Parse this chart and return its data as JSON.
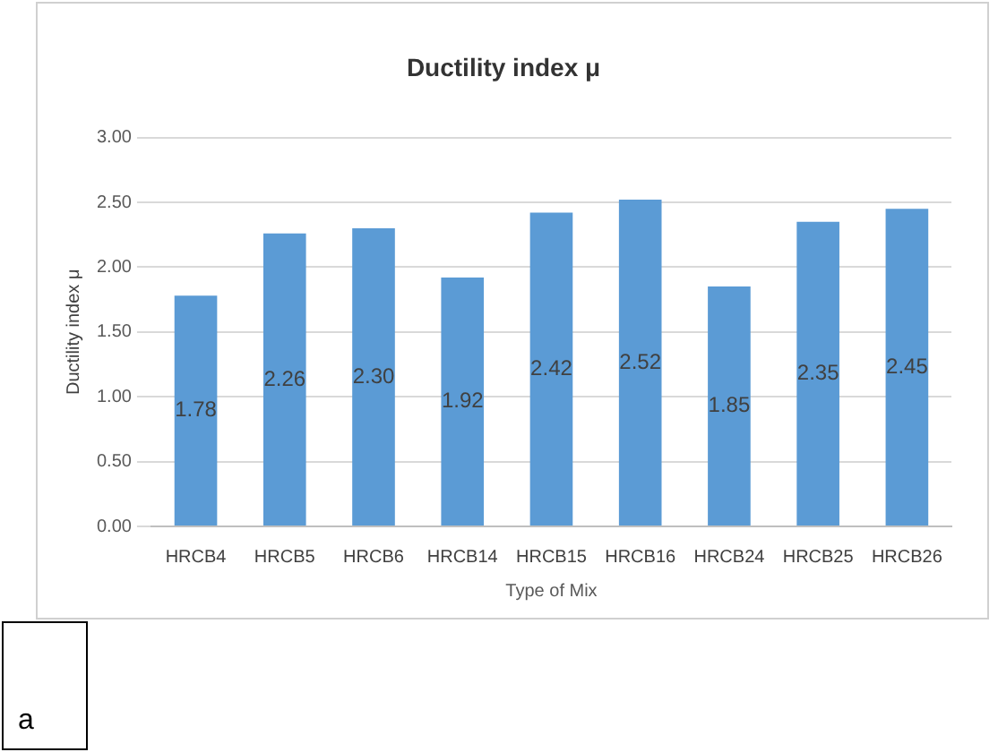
{
  "chart_data": {
    "type": "bar",
    "title": "Ductility index μ",
    "xlabel": "Type of Mix",
    "ylabel": "Ductility index μ",
    "categories": [
      "HRCB4",
      "HRCB5",
      "HRCB6",
      "HRCB14",
      "HRCB15",
      "HRCB16",
      "HRCB24",
      "HRCB25",
      "HRCB26"
    ],
    "values": [
      1.78,
      2.26,
      2.3,
      1.92,
      2.42,
      2.52,
      1.85,
      2.35,
      2.45
    ],
    "value_labels": [
      "1.78",
      "2.26",
      "2.30",
      "1.92",
      "2.42",
      "2.52",
      "1.85",
      "2.35",
      "2.45"
    ],
    "color": "#5b9bd5",
    "ylim": [
      0,
      3
    ],
    "yticks": [
      {
        "value": 0,
        "label": "0.00"
      },
      {
        "value": 0.5,
        "label": "0.50"
      },
      {
        "value": 1,
        "label": "1.00"
      },
      {
        "value": 1.5,
        "label": "1.50"
      },
      {
        "value": 2,
        "label": "2.00"
      },
      {
        "value": 2.5,
        "label": "2.50"
      },
      {
        "value": 3,
        "label": "3.00"
      }
    ],
    "grid": "y",
    "legend": false,
    "annotations": [
      "a"
    ]
  }
}
